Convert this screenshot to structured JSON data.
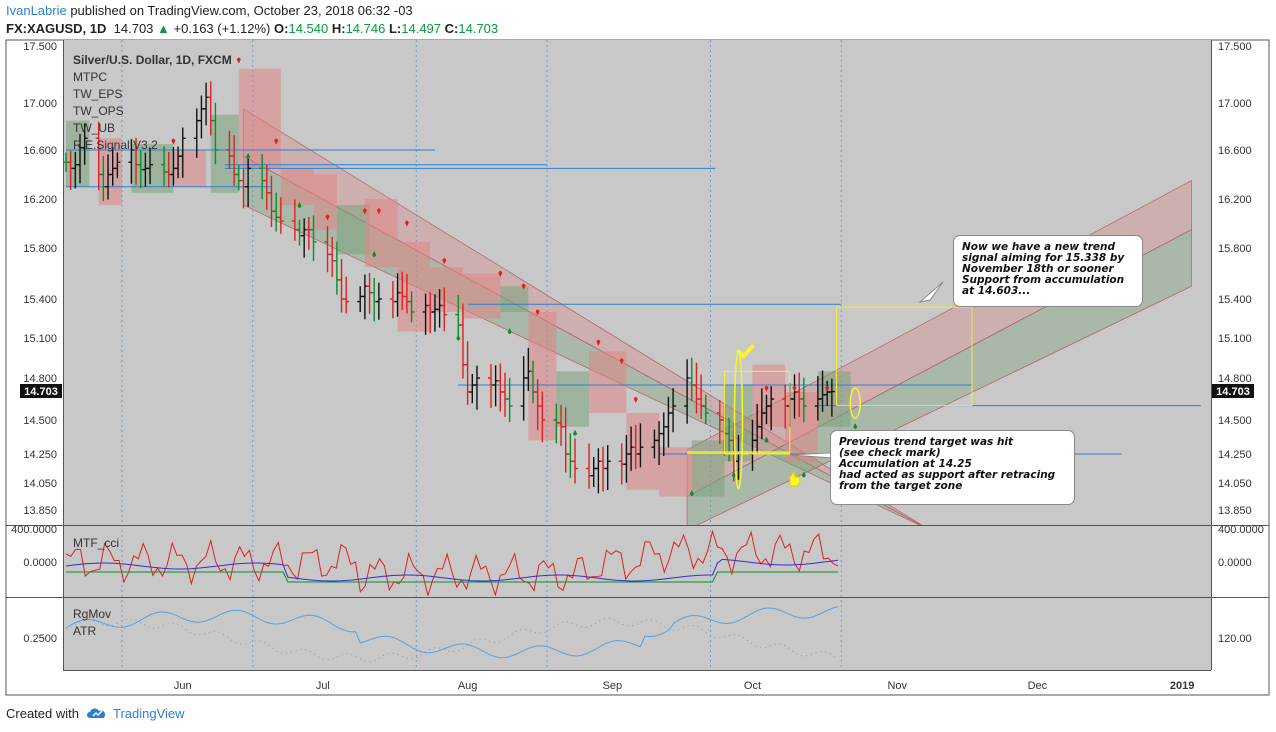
{
  "header": {
    "author": "IvanLabrie",
    "published_text": " published on TradingView.com, October 23, 2018 06:32 -03",
    "symbol": "FX:XAGUSD, 1D",
    "last": "14.703",
    "change": "+0.163 (+1.12%)",
    "o_label": "O:",
    "o": "14.540",
    "h_label": "H:",
    "h": "14.746",
    "l_label": "L:",
    "l": "14.497",
    "c_label": "C:",
    "c": "14.703"
  },
  "legend": {
    "instrument": "Silver/U.S. Dollar, 1D, FXCM",
    "indicators": [
      "MTPC",
      "TW_EPS",
      "TW_OPS",
      "TW_UB",
      "R.E.Signal V3.2"
    ]
  },
  "price_label": "14.703",
  "x_labels": [
    "Jun",
    "Jul",
    "Aug",
    "Sep",
    "Oct",
    "Nov",
    "Dec",
    "2019"
  ],
  "annotations": {
    "new_trend": "Now we have a new trend\nsignal aiming for 15.338 by\nNovember 18th or sooner\nSupport from accumulation\nat 14.603...",
    "previous_target": "Previous trend target was hit\n(see check mark)\nAccumulation at 14.25\nhad acted as support after retracing\nfrom the target zone"
  },
  "panes": {
    "cci": {
      "title": "MTF_cci",
      "left_ticks": [
        "400.0000",
        "0.0000"
      ],
      "right_ticks": [
        "400.0000",
        "0.0000"
      ]
    },
    "atr": {
      "titles": [
        "RgMov",
        "ATR"
      ],
      "left_ticks": [
        "0.2500"
      ],
      "right_ticks": [
        "120.00"
      ]
    }
  },
  "footer": {
    "created_with": "Created with",
    "brand": "TradingView"
  },
  "colors": {
    "up": "#0a8f2a",
    "down": "#e02020",
    "accent": "#2d7fd3",
    "bg": "#c8c8c8",
    "highlight": "#f5f530"
  },
  "chart_data": {
    "type": "candlestick",
    "title": "Silver/U.S. Dollar, 1D, FXCM",
    "ylim": [
      13.7,
      17.5
    ],
    "yticks": [
      17.5,
      17.0,
      16.6,
      16.2,
      15.8,
      15.4,
      15.1,
      14.8,
      14.5,
      14.25,
      14.05,
      13.85
    ],
    "date_range": [
      "2018-05-07",
      "2019-01-01"
    ],
    "close": [
      16.5,
      16.45,
      16.48,
      16.62,
      16.7,
      16.4,
      16.3,
      16.4,
      16.45,
      16.5,
      16.6,
      16.48,
      16.44,
      16.45,
      16.48,
      16.42,
      16.4,
      16.45,
      16.55,
      16.7,
      16.85,
      16.95,
      17.05,
      16.85,
      16.6,
      16.55,
      16.4,
      16.35,
      16.3,
      16.45,
      16.35,
      16.25,
      16.1,
      16.05,
      16.02,
      15.95,
      15.9,
      15.95,
      15.95,
      15.85,
      15.75,
      15.7,
      15.55,
      15.4,
      15.38,
      15.42,
      15.5,
      15.45,
      15.38,
      15.4,
      15.38,
      15.45,
      15.42,
      15.38,
      15.3,
      15.35,
      15.3,
      15.32,
      15.35,
      15.28,
      15.2,
      14.9,
      14.7,
      14.75,
      14.8,
      14.75,
      14.78,
      14.7,
      14.65,
      14.6,
      14.8,
      14.85,
      14.7,
      14.6,
      14.5,
      14.48,
      14.45,
      14.25,
      14.2,
      14.15,
      14.1,
      14.15,
      14.2,
      14.15,
      14.2,
      14.18,
      14.25,
      14.3,
      14.25,
      14.3,
      14.35,
      14.4,
      14.45,
      14.55,
      14.6,
      14.8,
      14.75,
      14.65,
      14.6,
      14.55,
      14.5,
      14.4,
      14.35,
      14.2,
      14.25,
      14.35,
      14.45,
      14.55,
      14.6,
      14.65,
      14.6,
      14.65,
      14.7,
      14.65,
      14.6,
      14.65,
      14.68,
      14.7,
      14.703
    ],
    "levels": [
      16.6,
      16.48,
      16.3,
      15.36,
      14.75,
      14.603,
      14.25
    ],
    "target": 15.338,
    "support": 14.603
  }
}
